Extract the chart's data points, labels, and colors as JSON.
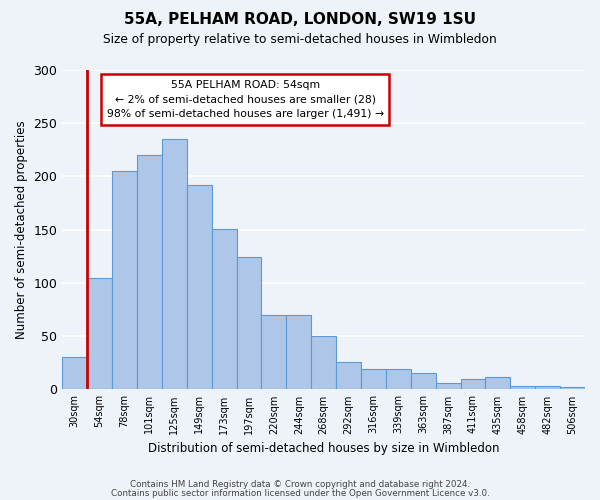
{
  "title1": "55A, PELHAM ROAD, LONDON, SW19 1SU",
  "title2": "Size of property relative to semi-detached houses in Wimbledon",
  "xlabel": "Distribution of semi-detached houses by size in Wimbledon",
  "ylabel": "Number of semi-detached properties",
  "bar_labels": [
    "30sqm",
    "54sqm",
    "78sqm",
    "101sqm",
    "125sqm",
    "149sqm",
    "173sqm",
    "197sqm",
    "220sqm",
    "244sqm",
    "268sqm",
    "292sqm",
    "316sqm",
    "339sqm",
    "363sqm",
    "387sqm",
    "411sqm",
    "435sqm",
    "458sqm",
    "482sqm",
    "506sqm"
  ],
  "bar_values": [
    30,
    105,
    205,
    220,
    235,
    192,
    151,
    124,
    70,
    70,
    50,
    26,
    19,
    19,
    15,
    6,
    10,
    12,
    3,
    3,
    2
  ],
  "bar_color": "#aec6e8",
  "bar_edge_color": "#5b9bd5",
  "highlight_bar_index": 1,
  "highlight_color": "#cc0000",
  "annotation_title": "55A PELHAM ROAD: 54sqm",
  "annotation_line2": "← 2% of semi-detached houses are smaller (28)",
  "annotation_line3": "98% of semi-detached houses are larger (1,491) →",
  "annotation_box_color": "#ffffff",
  "annotation_box_edge": "#cc0000",
  "ylim": [
    0,
    300
  ],
  "yticks": [
    0,
    50,
    100,
    150,
    200,
    250,
    300
  ],
  "footer1": "Contains HM Land Registry data © Crown copyright and database right 2024.",
  "footer2": "Contains public sector information licensed under the Open Government Licence v3.0.",
  "bg_color": "#eef2f9",
  "plot_bg_color": "#eef2f9",
  "grid_color": "#ffffff"
}
